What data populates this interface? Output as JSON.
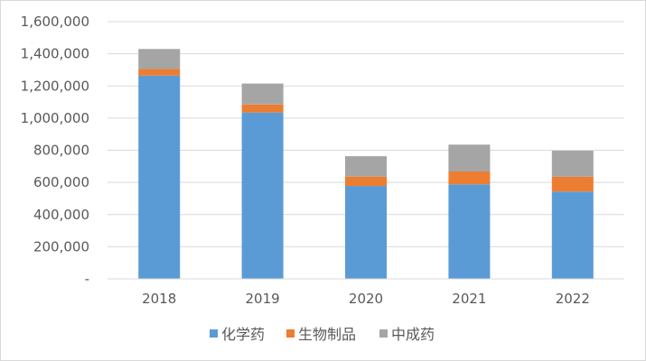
{
  "chart_data": {
    "type": "bar",
    "stacked": true,
    "categories": [
      "2018",
      "2019",
      "2020",
      "2021",
      "2022"
    ],
    "series": [
      {
        "name": "化学药",
        "color": "#5b9bd5",
        "values": [
          1265000,
          1035000,
          578000,
          588000,
          543000
        ]
      },
      {
        "name": "生物制品",
        "color": "#ed7d31",
        "values": [
          40000,
          50000,
          58000,
          80000,
          92000
        ]
      },
      {
        "name": "中成药",
        "color": "#a5a5a5",
        "values": [
          125000,
          130000,
          127000,
          167000,
          162000
        ]
      }
    ],
    "ylim": [
      0,
      1600000
    ],
    "yticks": [
      {
        "value": 0,
        "label": "-"
      },
      {
        "value": 200000,
        "label": "200,000"
      },
      {
        "value": 400000,
        "label": "400,000"
      },
      {
        "value": 600000,
        "label": "600,000"
      },
      {
        "value": 800000,
        "label": "800,000"
      },
      {
        "value": 1000000,
        "label": "1,000,000"
      },
      {
        "value": 1200000,
        "label": "1,200,000"
      },
      {
        "value": 1400000,
        "label": "1,400,000"
      },
      {
        "value": 1600000,
        "label": "1,600,000"
      }
    ],
    "grid": true,
    "legend": "bottom"
  }
}
